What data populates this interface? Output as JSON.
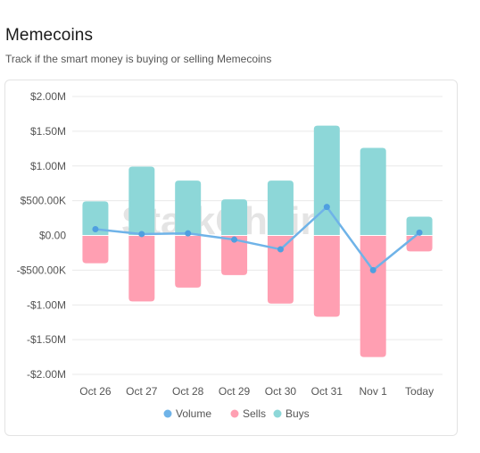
{
  "header": {
    "title": "Memecoins",
    "subtitle": "Track if the smart money is buying or selling Memecoins"
  },
  "watermark": "StalkChain",
  "colors": {
    "buys": "#8dd7d8",
    "sells": "#ff9fb2",
    "volume": "#6fb3e8",
    "grid": "#e9e9e9"
  },
  "chart_data": {
    "type": "bar",
    "stacked": true,
    "categories": [
      "Oct 26",
      "Oct 27",
      "Oct 28",
      "Oct 29",
      "Oct 30",
      "Oct 31",
      "Nov 1",
      "Today"
    ],
    "ylim": [
      -2000000,
      2000000
    ],
    "yticks": [
      2000000,
      1500000,
      1000000,
      500000,
      0,
      -500000,
      -1000000,
      -1500000,
      -2000000
    ],
    "ytick_labels": [
      "$2.00M",
      "$1.50M",
      "$1.00M",
      "$500.00K",
      "$0.00",
      "-$500.00K",
      "-$1.00M",
      "-$1.50M",
      "-$2.00M"
    ],
    "series": [
      {
        "name": "Volume",
        "type": "line",
        "values": [
          90000,
          20000,
          30000,
          -60000,
          -200000,
          410000,
          -500000,
          40000
        ]
      },
      {
        "name": "Sells",
        "type": "bar",
        "values": [
          -400000,
          -950000,
          -750000,
          -570000,
          -980000,
          -1170000,
          -1750000,
          -230000
        ]
      },
      {
        "name": "Buys",
        "type": "bar",
        "values": [
          490000,
          990000,
          790000,
          520000,
          790000,
          1580000,
          1260000,
          270000
        ]
      }
    ],
    "legend": {
      "position": "bottom",
      "entries": [
        "Volume",
        "Sells",
        "Buys"
      ]
    },
    "grid": true
  }
}
